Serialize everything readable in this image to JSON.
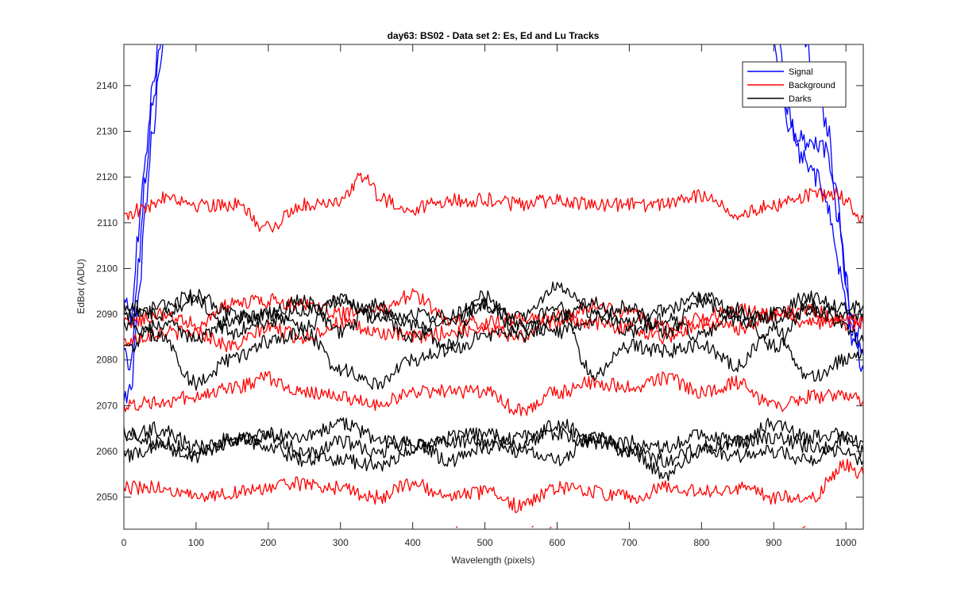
{
  "chart_data": {
    "type": "line",
    "title": "day63: BS02 - Data set 2: Es, Ed and Lu Tracks",
    "xlabel": "Wavelength (pixels)",
    "ylabel": "EdBot (ADU)",
    "xlim": [
      0,
      1024
    ],
    "ylim": [
      2043,
      2149
    ],
    "x_ticks": [
      "0",
      "100",
      "200",
      "300",
      "400",
      "500",
      "600",
      "700",
      "800",
      "900",
      "1000"
    ],
    "y_ticks": [
      "2050",
      "2060",
      "2070",
      "2080",
      "2090",
      "2100",
      "2110",
      "2120",
      "2130",
      "2140"
    ],
    "grid": false,
    "legend_position": "top-right",
    "colors": {
      "Signal": "#0000ff",
      "Background": "#ff0000",
      "Darks": "#000000"
    },
    "series": [
      {
        "name": "Signal",
        "color": "#0000ff",
        "traces": [
          {
            "x": [
              0,
              10,
              20,
              30,
              40,
              50,
              55,
              58
            ],
            "y": [
              2072,
              2074,
              2092,
              2112,
              2130,
              2145,
              2150,
              2152
            ]
          },
          {
            "x": [
              0,
              10,
              20,
              30,
              40,
              52
            ],
            "y": [
              2083,
              2078,
              2100,
              2120,
              2136,
              2151
            ]
          },
          {
            "x": [
              0,
              10,
              20,
              30,
              42,
              48
            ],
            "y": [
              2094,
              2088,
              2108,
              2125,
              2142,
              2150
            ]
          },
          {
            "x": [
              900,
              910,
              920,
              930,
              950,
              970,
              985,
              1000,
              1010,
              1024
            ],
            "y": [
              2151,
              2140,
              2132,
              2129,
              2127,
              2126,
              2118,
              2098,
              2084,
              2088
            ]
          },
          {
            "x": [
              905,
              920,
              940,
              960,
              975,
              990,
              1005,
              1024
            ],
            "y": [
              2151,
              2134,
              2124,
              2120,
              2114,
              2100,
              2088,
              2081
            ]
          },
          {
            "x": [
              940,
              960,
              975,
              990,
              1005,
              1024
            ],
            "y": [
              2151,
              2142,
              2130,
              2110,
              2092,
              2078
            ]
          }
        ]
      },
      {
        "name": "Background",
        "color": "#ff0000",
        "traces": [
          {
            "x": [
              0,
              30,
              60,
              100,
              150,
              200,
              250,
              300,
              330,
              360,
              400,
              450,
              500,
              550,
              600,
              650,
              700,
              750,
              800,
              850,
              900,
              950,
              990,
              1024
            ],
            "y": [
              2112,
              2113,
              2116,
              2114,
              2114,
              2109,
              2114,
              2115,
              2120,
              2115,
              2113,
              2115,
              2115,
              2114,
              2115,
              2114,
              2114,
              2114,
              2116,
              2112,
              2114,
              2116,
              2116,
              2111
            ]
          },
          {
            "x": [
              0,
              50,
              100,
              150,
              200,
              250,
              300,
              350,
              400,
              450,
              500,
              550,
              600,
              650,
              700,
              750,
              800,
              850,
              900,
              950,
              1000,
              1024
            ],
            "y": [
              2052,
              2052,
              2050,
              2051,
              2052,
              2053,
              2052,
              2050,
              2053,
              2050,
              2051,
              2048,
              2052,
              2051,
              2050,
              2052,
              2051,
              2052,
              2050,
              2050,
              2057,
              2055
            ]
          },
          {
            "x": [
              0,
              50,
              100,
              150,
              200,
              250,
              300,
              350,
              400,
              450,
              500,
              550,
              600,
              650,
              700,
              750,
              800,
              850,
              900,
              950,
              1000,
              1024
            ],
            "y": [
              2070,
              2071,
              2072,
              2074,
              2076,
              2073,
              2072,
              2070,
              2073,
              2073,
              2073,
              2069,
              2073,
              2075,
              2074,
              2076,
              2073,
              2075,
              2070,
              2072,
              2072,
              2071
            ]
          },
          {
            "x": [
              0,
              50,
              100,
              150,
              200,
              250,
              300,
              350,
              400,
              450,
              500,
              550,
              600,
              650,
              700,
              750,
              800,
              850,
              900,
              950,
              1000,
              1024
            ],
            "y": [
              2088,
              2090,
              2088,
              2092,
              2093,
              2092,
              2090,
              2091,
              2094,
              2089,
              2088,
              2089,
              2088,
              2092,
              2090,
              2087,
              2089,
              2091,
              2090,
              2088,
              2089,
              2089
            ]
          },
          {
            "x": [
              0,
              50,
              100,
              150,
              200,
              250,
              300,
              350,
              400,
              450,
              500,
              550,
              600,
              650,
              700,
              750,
              800,
              850,
              900,
              950,
              1000,
              1024
            ],
            "y": [
              2084,
              2086,
              2086,
              2083,
              2087,
              2085,
              2088,
              2086,
              2085,
              2086,
              2087,
              2085,
              2090,
              2088,
              2087,
              2085,
              2088,
              2087,
              2090,
              2091,
              2088,
              2088
            ]
          }
        ]
      },
      {
        "name": "Darks",
        "color": "#000000",
        "traces": [
          {
            "x": [
              0,
              50,
              100,
              150,
              200,
              250,
              300,
              350,
              400,
              450,
              500,
              550,
              600,
              650,
              700,
              750,
              800,
              850,
              900,
              950,
              1000,
              1024
            ],
            "y": [
              2090,
              2092,
              2094,
              2090,
              2088,
              2091,
              2093,
              2089,
              2090,
              2088,
              2092,
              2089,
              2096,
              2090,
              2088,
              2091,
              2094,
              2090,
              2089,
              2091,
              2090,
              2090
            ]
          },
          {
            "x": [
              0,
              50,
              100,
              150,
              200,
              250,
              300,
              350,
              400,
              450,
              500,
              550,
              600,
              650,
              700,
              750,
              800,
              850,
              900,
              950,
              1000,
              1024
            ],
            "y": [
              2088,
              2085,
              2075,
              2080,
              2084,
              2086,
              2078,
              2075,
              2080,
              2082,
              2085,
              2087,
              2092,
              2077,
              2083,
              2082,
              2083,
              2079,
              2087,
              2076,
              2080,
              2082
            ]
          },
          {
            "x": [
              0,
              50,
              100,
              150,
              200,
              250,
              300,
              350,
              400,
              450,
              500,
              550,
              600,
              650,
              700,
              750,
              800,
              850,
              900,
              950,
              1000,
              1024
            ],
            "y": [
              2092,
              2090,
              2093,
              2086,
              2090,
              2093,
              2086,
              2092,
              2088,
              2083,
              2094,
              2085,
              2089,
              2093,
              2086,
              2089,
              2085,
              2091,
              2083,
              2092,
              2087,
              2084
            ]
          },
          {
            "x": [
              0,
              50,
              100,
              150,
              200,
              250,
              300,
              350,
              400,
              450,
              500,
              550,
              600,
              650,
              700,
              750,
              800,
              850,
              900,
              950,
              1000,
              1024
            ],
            "y": [
              2082,
              2088,
              2085,
              2089,
              2090,
              2087,
              2093,
              2090,
              2085,
              2090,
              2092,
              2088,
              2086,
              2089,
              2092,
              2086,
              2093,
              2088,
              2090,
              2094,
              2091,
              2092
            ]
          },
          {
            "x": [
              0,
              50,
              100,
              150,
              200,
              250,
              300,
              350,
              400,
              450,
              500,
              550,
              600,
              650,
              700,
              750,
              800,
              850,
              900,
              950,
              1000,
              1024
            ],
            "y": [
              2063,
              2065,
              2061,
              2062,
              2064,
              2063,
              2066,
              2063,
              2061,
              2062,
              2062,
              2063,
              2064,
              2062,
              2062,
              2061,
              2064,
              2062,
              2066,
              2063,
              2064,
              2062
            ]
          },
          {
            "x": [
              0,
              50,
              100,
              150,
              200,
              250,
              300,
              350,
              400,
              450,
              500,
              550,
              600,
              650,
              700,
              750,
              800,
              850,
              900,
              950,
              1000,
              1024
            ],
            "y": [
              2059,
              2061,
              2059,
              2063,
              2061,
              2058,
              2062,
              2060,
              2062,
              2058,
              2061,
              2060,
              2058,
              2063,
              2060,
              2058,
              2061,
              2059,
              2060,
              2058,
              2063,
              2060
            ]
          },
          {
            "x": [
              0,
              50,
              100,
              150,
              200,
              250,
              300,
              350,
              400,
              450,
              500,
              550,
              600,
              650,
              700,
              750,
              800,
              850,
              900,
              950,
              1000,
              1024
            ],
            "y": [
              2064,
              2062,
              2060,
              2062,
              2063,
              2060,
              2058,
              2057,
              2060,
              2063,
              2064,
              2061,
              2066,
              2063,
              2060,
              2055,
              2060,
              2062,
              2063,
              2061,
              2060,
              2058
            ]
          }
        ]
      }
    ],
    "partial_background_fragments": [
      {
        "x": [
          460,
          462
        ],
        "y": [
          2043.3,
          2043.6
        ]
      },
      {
        "x": [
          565,
          567
        ],
        "y": [
          2043.4,
          2043.7
        ]
      },
      {
        "x": [
          590,
          592
        ],
        "y": [
          2043.2,
          2043.5
        ]
      },
      {
        "x": [
          940,
          944
        ],
        "y": [
          2043.3,
          2043.6
        ]
      }
    ]
  }
}
